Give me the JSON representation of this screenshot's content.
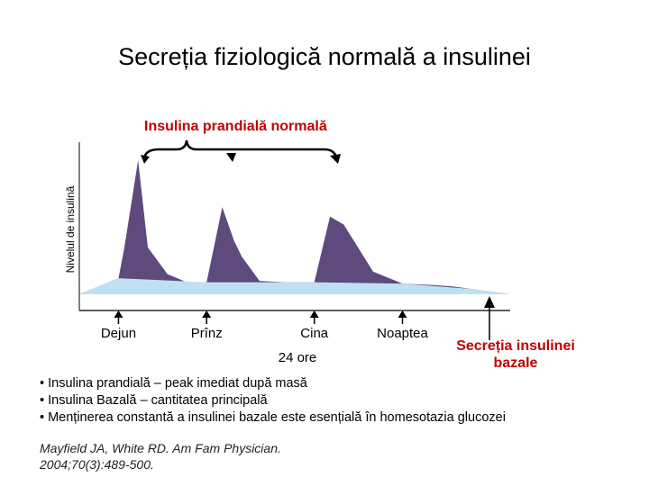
{
  "title": "Secreția fiziologică normală a insulinei",
  "subtitle": "Insulina prandială normală",
  "y_axis_label": "Nivelul de insulină",
  "meals": [
    {
      "label": "Dejun",
      "hour": 0
    },
    {
      "label": "Prînz",
      "hour": 4.5
    },
    {
      "label": "Cina",
      "hour": 10
    },
    {
      "label": "Noaptea",
      "hour": 14.5
    }
  ],
  "duration_label": "24 ore",
  "basal_label": "Secreția insulinei bazale",
  "bullets": [
    "• Insulina prandială – peak imediat după masă",
    "•  Insulina Bazală – cantitatea principală",
    "•  Menținerea constantă a insulinei bazale este esențială în homesotazia glucozei"
  ],
  "citation": {
    "line1": "Mayfield JA, White RD. Am Fam Physician.",
    "line2": "2004;70(3):489-500."
  },
  "chart_data": {
    "type": "area",
    "x_unit": "hours",
    "xlim": [
      -2,
      20
    ],
    "ylim": [
      0,
      10
    ],
    "series": [
      {
        "name": "Insulina bazală",
        "color": "#bfe0f3",
        "x": [
          -2,
          -1,
          0,
          4.5,
          10,
          14.5,
          18,
          20
        ],
        "y": [
          0,
          0.6,
          1.2,
          0.9,
          0.9,
          0.8,
          0.4,
          0
        ]
      },
      {
        "name": "Insulina prandială",
        "color": "#5e4a7c",
        "x": [
          -2,
          -1,
          0,
          0.3,
          1,
          1.5,
          2.5,
          3.5,
          4.5,
          5.3,
          5.9,
          6.3,
          7.2,
          8.5,
          10,
          10.8,
          11.5,
          13,
          14.5,
          16,
          17,
          18,
          20
        ],
        "y": [
          0,
          0.6,
          1.2,
          3.5,
          10,
          3.5,
          1.5,
          0.9,
          0.9,
          6.5,
          4.0,
          2.8,
          1.0,
          0.9,
          0.9,
          5.8,
          5.2,
          1.7,
          0.8,
          0.7,
          0.6,
          0.4,
          0
        ]
      }
    ]
  },
  "colors": {
    "accent_red": "#c00000",
    "basal_fill": "#bfe0f3",
    "prandial_fill": "#5e4a7c"
  }
}
